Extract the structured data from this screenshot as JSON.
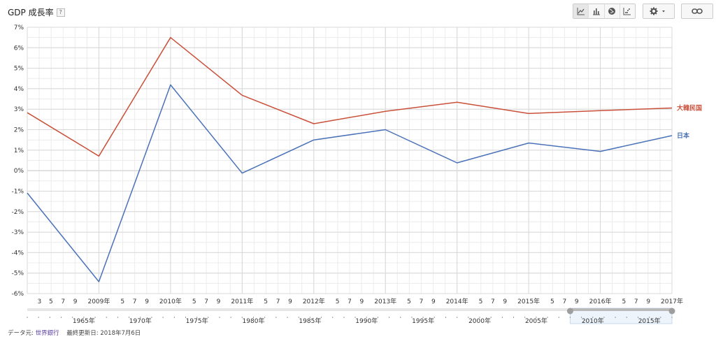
{
  "header": {
    "title": "GDP 成長率",
    "help_label": "?"
  },
  "toolbar": {
    "views": [
      {
        "name": "line-chart-icon",
        "active": true
      },
      {
        "name": "bar-chart-icon",
        "active": false
      },
      {
        "name": "globe-icon",
        "active": false
      },
      {
        "name": "scatter-chart-icon",
        "active": false
      }
    ],
    "settings_icon": "gear-icon",
    "link_icon": "link-icon"
  },
  "chart_data": {
    "type": "line",
    "title": "GDP 成長率",
    "xlabel": "",
    "ylabel": "",
    "ylim": [
      -6,
      7
    ],
    "yticks": [
      -6,
      -5,
      -4,
      -3,
      -2,
      -1,
      0,
      1,
      2,
      3,
      4,
      5,
      6,
      7
    ],
    "ytick_labels": [
      "-6%",
      "-5%",
      "-4%",
      "-3%",
      "-2%",
      "-1%",
      "0%",
      "1%",
      "2%",
      "3%",
      "4%",
      "5%",
      "6%",
      "7%"
    ],
    "xlim": [
      2008,
      2017
    ],
    "x": [
      2008,
      2009,
      2010,
      2011,
      2012,
      2013,
      2014,
      2015,
      2016,
      2017
    ],
    "series": [
      {
        "name": "大韓民国",
        "color": "#c9513a",
        "values": [
          2.83,
          0.71,
          6.5,
          3.68,
          2.29,
          2.9,
          3.34,
          2.79,
          2.93,
          3.06
        ]
      },
      {
        "name": "日本",
        "color": "#4a72b8",
        "values": [
          -1.09,
          -5.42,
          4.19,
          -0.12,
          1.5,
          2.0,
          0.38,
          1.35,
          0.94,
          1.71
        ]
      }
    ],
    "major_ticks": [
      {
        "x": 2009,
        "label": "2009年"
      },
      {
        "x": 2010,
        "label": "2010年"
      },
      {
        "x": 2011,
        "label": "2011年"
      },
      {
        "x": 2012,
        "label": "2012年"
      },
      {
        "x": 2013,
        "label": "2013年"
      },
      {
        "x": 2014,
        "label": "2014年"
      },
      {
        "x": 2015,
        "label": "2015年"
      },
      {
        "x": 2016,
        "label": "2016年"
      },
      {
        "x": 2017,
        "label": "2017年"
      }
    ],
    "minor_labels": [
      {
        "x": 2008.17,
        "label": "3"
      },
      {
        "x": 2008.33,
        "label": "5"
      },
      {
        "x": 2008.5,
        "label": "7"
      },
      {
        "x": 2008.67,
        "label": "9"
      },
      {
        "x": 2009.33,
        "label": "5"
      },
      {
        "x": 2009.5,
        "label": "7"
      },
      {
        "x": 2009.67,
        "label": "9"
      },
      {
        "x": 2010.33,
        "label": "5"
      },
      {
        "x": 2010.5,
        "label": "7"
      },
      {
        "x": 2010.67,
        "label": "9"
      },
      {
        "x": 2011.33,
        "label": "5"
      },
      {
        "x": 2011.5,
        "label": "7"
      },
      {
        "x": 2011.67,
        "label": "9"
      },
      {
        "x": 2012.33,
        "label": "5"
      },
      {
        "x": 2012.5,
        "label": "7"
      },
      {
        "x": 2012.67,
        "label": "9"
      },
      {
        "x": 2013.33,
        "label": "5"
      },
      {
        "x": 2013.5,
        "label": "7"
      },
      {
        "x": 2013.67,
        "label": "9"
      },
      {
        "x": 2014.33,
        "label": "5"
      },
      {
        "x": 2014.5,
        "label": "7"
      },
      {
        "x": 2014.67,
        "label": "9"
      },
      {
        "x": 2015.33,
        "label": "5"
      },
      {
        "x": 2015.5,
        "label": "7"
      },
      {
        "x": 2015.67,
        "label": "9"
      },
      {
        "x": 2016.33,
        "label": "5"
      },
      {
        "x": 2016.5,
        "label": "7"
      },
      {
        "x": 2016.67,
        "label": "9"
      }
    ],
    "grid": true,
    "legend": "inline-right"
  },
  "timeline": {
    "xlim": [
      1960,
      2017
    ],
    "labels": [
      "1965年",
      "1970年",
      "1975年",
      "1980年",
      "1985年",
      "1990年",
      "1995年",
      "2000年",
      "2005年",
      "2010年",
      "2015年"
    ],
    "label_years": [
      1965,
      1970,
      1975,
      1980,
      1985,
      1990,
      1995,
      2000,
      2005,
      2010,
      2015
    ],
    "selection": [
      2008,
      2017
    ]
  },
  "footer": {
    "source_prefix": "データ元: ",
    "source_name": "世界銀行",
    "updated_label": "最終更新日: 2018年7月6日"
  }
}
